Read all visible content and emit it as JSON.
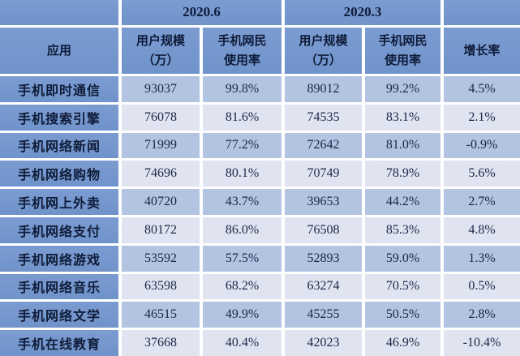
{
  "colors": {
    "header_blue": "#6f93ca",
    "header_blue_light": "#7b9cd1",
    "row_odd": "#b3c3e2",
    "row_even": "#dfe4f0",
    "text_dark": "#0f1b38",
    "num_text": "#1b2747",
    "grid_gap": "#ffffff"
  },
  "table": {
    "col_groups": [
      {
        "label": "2020.6"
      },
      {
        "label": "2020.3"
      }
    ],
    "headers": {
      "app": "应用",
      "scale_line1": "用户规模",
      "scale_line2": "（万）",
      "rate_line1": "手机网民",
      "rate_line2": "使用率",
      "growth": "增长率"
    }
  },
  "chart_data": {
    "type": "table",
    "title": "",
    "column_groups": [
      "2020.6",
      "2020.3"
    ],
    "columns": [
      "应用",
      "2020.6 用户规模（万）",
      "2020.6 手机网民使用率",
      "2020.3 用户规模（万）",
      "2020.3 手机网民使用率",
      "增长率"
    ],
    "rows": [
      [
        "手机即时通信",
        "93037",
        "99.8%",
        "89012",
        "99.2%",
        "4.5%"
      ],
      [
        "手机搜索引擎",
        "76078",
        "81.6%",
        "74535",
        "83.1%",
        "2.1%"
      ],
      [
        "手机网络新闻",
        "71999",
        "77.2%",
        "72642",
        "81.0%",
        "-0.9%"
      ],
      [
        "手机网络购物",
        "74696",
        "80.1%",
        "70749",
        "78.9%",
        "5.6%"
      ],
      [
        "手机网上外卖",
        "40720",
        "43.7%",
        "39653",
        "44.2%",
        "2.7%"
      ],
      [
        "手机网络支付",
        "80172",
        "86.0%",
        "76508",
        "85.3%",
        "4.8%"
      ],
      [
        "手机网络游戏",
        "53592",
        "57.5%",
        "52893",
        "59.0%",
        "1.3%"
      ],
      [
        "手机网络音乐",
        "63598",
        "68.2%",
        "63274",
        "70.5%",
        "0.5%"
      ],
      [
        "手机网络文学",
        "46515",
        "49.9%",
        "45255",
        "50.5%",
        "2.8%"
      ],
      [
        "手机在线教育",
        "37668",
        "40.4%",
        "42023",
        "46.9%",
        "-10.4%"
      ]
    ]
  }
}
